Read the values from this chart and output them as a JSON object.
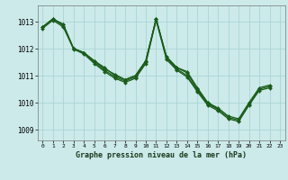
{
  "background_color": "#cceaea",
  "grid_color": "#aad4d4",
  "line_color": "#1a5c1a",
  "marker_color": "#1a5c1a",
  "title": "Graphe pression niveau de la mer (hPa)",
  "ylabel_ticks": [
    1009,
    1010,
    1011,
    1012,
    1013
  ],
  "xticks": [
    0,
    1,
    2,
    3,
    4,
    5,
    6,
    7,
    8,
    9,
    10,
    11,
    12,
    13,
    14,
    15,
    16,
    17,
    18,
    19,
    20,
    21,
    22,
    23
  ],
  "ylim": [
    1008.6,
    1013.6
  ],
  "xlim": [
    -0.5,
    23.5
  ],
  "series_x": [
    [
      0,
      1,
      2,
      3,
      4,
      5,
      6,
      7,
      8,
      9,
      10,
      11,
      12,
      13,
      14,
      15,
      16,
      17,
      18,
      19,
      20,
      21,
      22
    ],
    [
      0,
      1,
      2,
      3,
      4,
      5,
      6,
      7,
      8,
      9,
      10,
      11,
      12,
      13,
      14,
      15,
      16,
      17
    ],
    [
      0,
      1,
      2,
      3,
      4,
      5,
      6,
      7,
      8,
      9,
      10,
      11,
      12,
      13,
      14,
      15,
      16,
      17,
      18,
      19,
      20,
      21,
      22
    ],
    [
      0,
      1,
      2,
      3,
      4,
      5,
      6,
      7,
      8,
      9,
      10,
      11,
      12,
      13,
      14,
      15,
      16,
      17,
      18,
      19,
      20,
      21,
      22
    ]
  ],
  "series_y": [
    [
      1012.8,
      1013.1,
      1012.9,
      1012.0,
      1011.85,
      1011.55,
      1011.3,
      1011.0,
      1010.85,
      1011.0,
      1011.55,
      1013.1,
      1011.7,
      1011.3,
      1011.15,
      1010.55,
      1010.0,
      1009.8,
      1009.5,
      1009.4,
      1010.0,
      1010.55,
      1010.65
    ],
    [
      1012.8,
      1013.1,
      1012.9,
      1012.0,
      1011.85,
      1011.55,
      1011.25,
      1011.05,
      1010.85,
      1011.0,
      1011.55,
      1013.1,
      1011.7,
      1011.3,
      1011.1,
      1010.5,
      1010.0,
      1009.75
    ],
    [
      1012.8,
      1013.1,
      1012.85,
      1012.0,
      1011.85,
      1011.5,
      1011.2,
      1010.95,
      1010.8,
      1010.95,
      1011.5,
      1013.1,
      1011.65,
      1011.25,
      1011.0,
      1010.45,
      1009.95,
      1009.75,
      1009.45,
      1009.35,
      1009.95,
      1010.5,
      1010.6
    ],
    [
      1012.75,
      1013.05,
      1012.8,
      1011.98,
      1011.8,
      1011.45,
      1011.15,
      1010.9,
      1010.75,
      1010.9,
      1011.45,
      1013.05,
      1011.6,
      1011.2,
      1010.95,
      1010.4,
      1009.9,
      1009.7,
      1009.4,
      1009.3,
      1009.9,
      1010.45,
      1010.55
    ]
  ]
}
